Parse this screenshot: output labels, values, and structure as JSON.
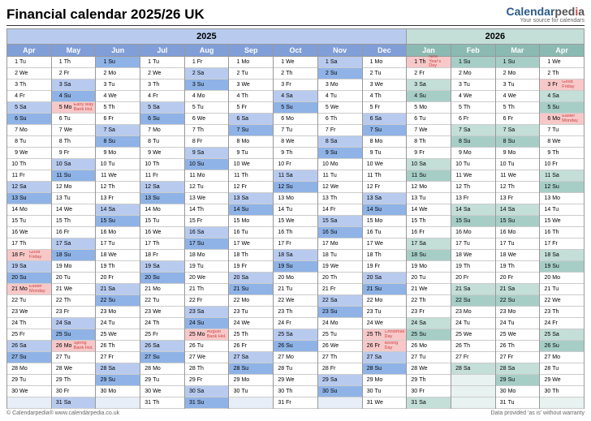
{
  "title": "Financial calendar 2025/26 UK",
  "tagline": "Your source for calendars",
  "footer": {
    "left": "© Calendarpedia®   www.calendarpedia.co.uk",
    "right": "Data provided 'as is' without warranty"
  },
  "colors": {
    "year2025_bg": "#b8cbef",
    "year2026_bg": "#c4ded8",
    "month2025_bg": "#809ed8",
    "month2026_bg": "#8bbab3",
    "sat2025": "#b8cbef",
    "sun2025": "#8fb3e6",
    "hol2025": "#f8c8c8",
    "sat2026": "#c4ded8",
    "sun2026": "#a6cec6",
    "hol2026": "#f8c8c8",
    "normal": "#ffffff",
    "border": "#999999"
  },
  "years": [
    {
      "label": "2025",
      "months": 9,
      "bg": "#b8cbef"
    },
    {
      "label": "2026",
      "months": 4,
      "bg": "#c4ded8"
    }
  ],
  "months": [
    {
      "name": "Apr",
      "days": 30,
      "startDow": 2,
      "year": 0,
      "holidays": {
        "18": "Good Friday",
        "21": "Easter Monday"
      }
    },
    {
      "name": "May",
      "days": 31,
      "startDow": 4,
      "year": 0,
      "holidays": {
        "5": "Early May Bank Hol.",
        "26": "Spring Bank Hol."
      }
    },
    {
      "name": "Jun",
      "days": 30,
      "startDow": 0,
      "year": 0,
      "holidays": {}
    },
    {
      "name": "Jul",
      "days": 31,
      "startDow": 2,
      "year": 0,
      "holidays": {}
    },
    {
      "name": "Aug",
      "days": 31,
      "startDow": 5,
      "year": 0,
      "holidays": {
        "25": "August Bank Hol."
      }
    },
    {
      "name": "Sep",
      "days": 30,
      "startDow": 1,
      "year": 0,
      "holidays": {}
    },
    {
      "name": "Oct",
      "days": 31,
      "startDow": 3,
      "year": 0,
      "holidays": {}
    },
    {
      "name": "Nov",
      "days": 30,
      "startDow": 6,
      "year": 0,
      "holidays": {}
    },
    {
      "name": "Dec",
      "days": 31,
      "startDow": 1,
      "year": 0,
      "holidays": {
        "25": "Christmas Day",
        "26": "Boxing Day"
      }
    },
    {
      "name": "Jan",
      "days": 31,
      "startDow": 4,
      "year": 1,
      "holidays": {
        "1": "New Year's Day"
      }
    },
    {
      "name": "Feb",
      "days": 28,
      "startDow": 0,
      "year": 1,
      "holidays": {}
    },
    {
      "name": "Mar",
      "days": 31,
      "startDow": 0,
      "year": 1,
      "holidays": {}
    },
    {
      "name": "Apr",
      "days": 30,
      "startDow": 3,
      "year": 1,
      "holidays": {
        "3": "Good Friday",
        "6": "Easter Monday"
      }
    }
  ],
  "dowNames": [
    "Su",
    "Mo",
    "Tu",
    "We",
    "Th",
    "Fr",
    "Sa"
  ],
  "maxRows": 31
}
